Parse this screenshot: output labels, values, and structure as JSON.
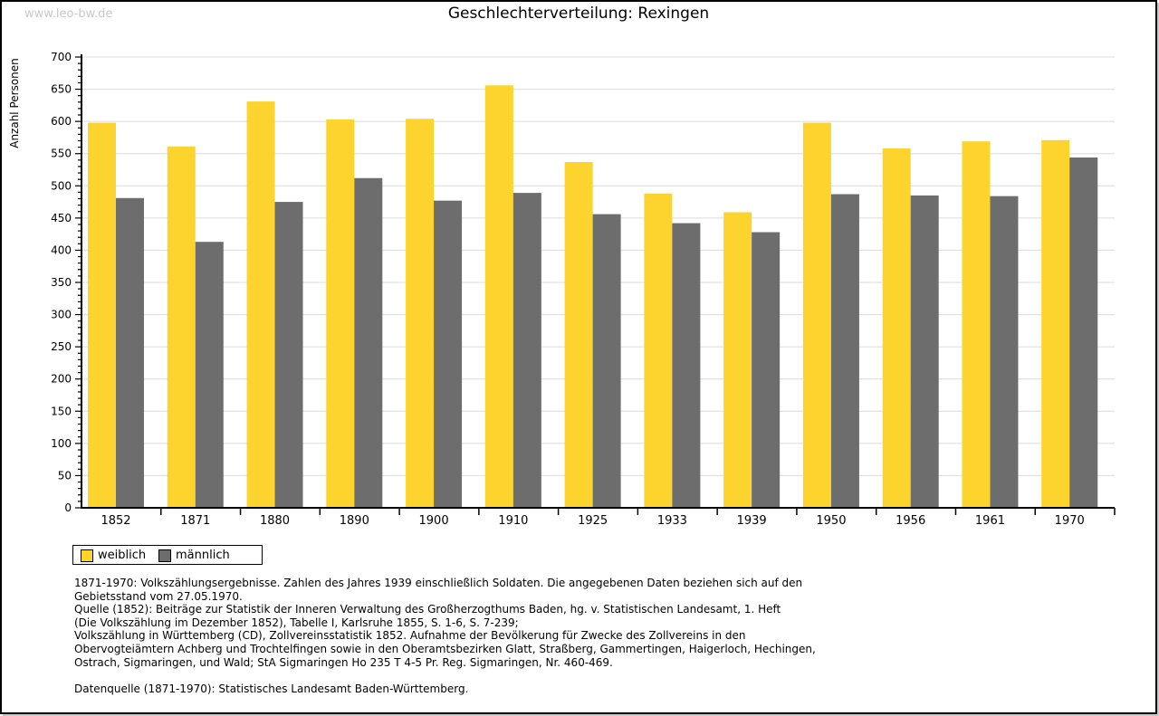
{
  "watermark": "www.leo-bw.de",
  "title": "Geschlechterverteilung: Rexingen",
  "colors": {
    "weiblich": "#FCD42D",
    "maennlich": "#6D6D6D",
    "grid": "#DCDCDC",
    "axis": "#000000",
    "watermark": "#C9C9C9"
  },
  "chart_data": {
    "type": "bar",
    "title": "Geschlechterverteilung: Rexingen",
    "xlabel": "",
    "ylabel": "Anzahl Personen",
    "categories": [
      "1852",
      "1871",
      "1880",
      "1890",
      "1900",
      "1910",
      "1925",
      "1933",
      "1939",
      "1950",
      "1956",
      "1961",
      "1970"
    ],
    "series": [
      {
        "name": "weiblich",
        "color": "#FCD42D",
        "values": [
          598,
          561,
          631,
          603,
          604,
          656,
          537,
          488,
          459,
          598,
          558,
          569,
          571
        ]
      },
      {
        "name": "männlich",
        "color": "#6D6D6D",
        "values": [
          481,
          413,
          475,
          512,
          477,
          489,
          456,
          442,
          428,
          487,
          485,
          484,
          544
        ]
      }
    ],
    "ylim": [
      0,
      700
    ],
    "ytick_step": 50,
    "minor_tick_step": 10,
    "grid": true,
    "legend_position": "bottom-left"
  },
  "legend": {
    "items": [
      {
        "label": "weiblich",
        "color": "#FCD42D"
      },
      {
        "label": "männlich",
        "color": "#6D6D6D"
      }
    ]
  },
  "footer": {
    "lines": [
      "1871-1970: Volkszählungsergebnisse. Zahlen des Jahres 1939 einschließlich Soldaten. Die angegebenen Daten beziehen sich auf den",
      "Gebietsstand vom 27.05.1970.",
      "Quelle (1852): Beiträge zur Statistik der Inneren Verwaltung des Großherzogthums Baden, hg. v. Statistischen Landesamt, 1. Heft",
      "(Die Volkszählung im Dezember 1852), Tabelle I, Karlsruhe 1855, S. 1-6, S. 7-239;",
      "Volkszählung in Württemberg (CD), Zollvereinsstatistik 1852. Aufnahme der Bevölkerung für Zwecke des Zollvereins in den",
      "Obervogteiämtern Achberg und Trochtelfingen sowie in den Oberamtsbezirken Glatt, Straßberg, Gammertingen, Haigerloch, Hechingen,",
      "Ostrach, Sigmaringen, und Wald; StA Sigmaringen Ho 235 T 4-5 Pr. Reg. Sigmaringen, Nr. 460-469.",
      "",
      "Datenquelle (1871-1970): Statistisches Landesamt Baden-Württemberg."
    ]
  }
}
